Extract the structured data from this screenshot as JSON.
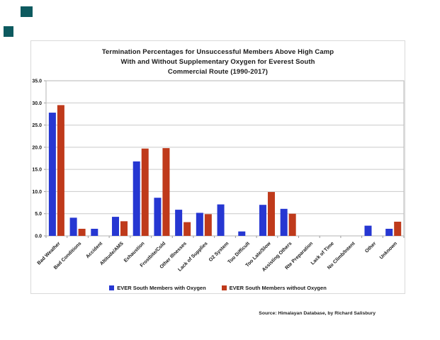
{
  "page": {
    "corner_mark_color": "#0d5a5f"
  },
  "chart": {
    "title_lines": [
      "Termination Percentages for Unsuccessful Members Above High Camp",
      "With and Without Supplementary Oxygen for Everest South",
      "Commercial Route (1990-2017)"
    ],
    "legend": [
      {
        "label": "EVER South Members with Oxygen",
        "color": "#2637d2"
      },
      {
        "label": "EVER South Members without Oxygen",
        "color": "#bf3a1b"
      }
    ],
    "source": "Source: Himalayan Database, by Richard Salisbury"
  },
  "chart_data": {
    "type": "bar",
    "title": "Termination Percentages for Unsuccessful Members Above High Camp With and Without Supplementary Oxygen for Everest South Commercial Route (1990-2017)",
    "xlabel": "",
    "ylabel": "",
    "ylim": [
      0,
      35
    ],
    "ytick_step": 5,
    "ytick_labels": [
      "0.0",
      "5.0",
      "10.0",
      "15.0",
      "20.0",
      "25.0",
      "30.0",
      "35.0"
    ],
    "grid": true,
    "legend_position": "bottom",
    "categories": [
      "Bad Weather",
      "Bad Conditions",
      "Accident",
      "Altitude/AMS",
      "Exhaustion",
      "Frostbite/Cold",
      "Other Illnesses",
      "Lack of Supplies",
      "O2 System",
      "Too Difficult",
      "Too Late/Slow",
      "Assisting Others",
      "Rte Preparation",
      "Lack of Time",
      "No Climb/Intent",
      "Other",
      "Unknown"
    ],
    "series": [
      {
        "name": "EVER South Members with Oxygen",
        "color": "#2637d2",
        "values": [
          27.8,
          4.1,
          1.6,
          4.3,
          16.8,
          8.6,
          5.9,
          5.2,
          7.1,
          1.0,
          7.0,
          6.1,
          0,
          0,
          0,
          2.3,
          1.6
        ]
      },
      {
        "name": "EVER South Members without Oxygen",
        "color": "#bf3a1b",
        "values": [
          29.5,
          1.6,
          0,
          3.3,
          19.7,
          19.8,
          3.1,
          4.9,
          0,
          0,
          9.9,
          5.0,
          0,
          0,
          0,
          0,
          3.2
        ]
      }
    ]
  }
}
